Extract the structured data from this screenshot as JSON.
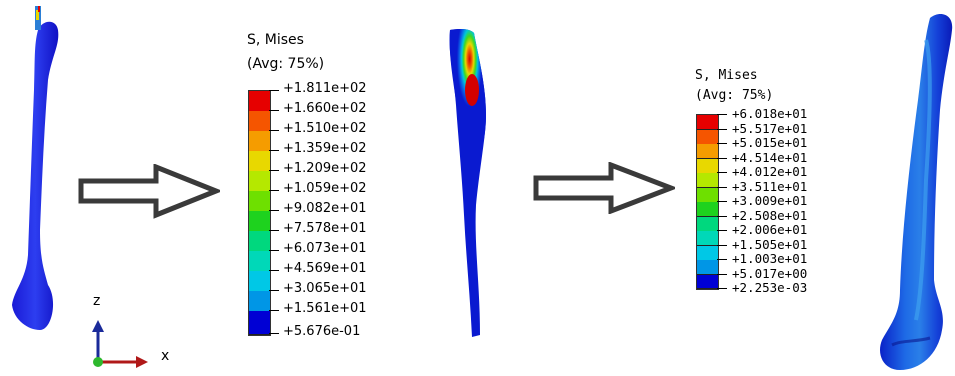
{
  "legend_left": {
    "title_line1": "S, Mises",
    "title_line2": "(Avg: 75%)",
    "values": [
      "+1.811e+02",
      "+1.660e+02",
      "+1.510e+02",
      "+1.359e+02",
      "+1.209e+02",
      "+1.059e+02",
      "+9.082e+01",
      "+7.578e+01",
      "+6.073e+01",
      "+4.569e+01",
      "+3.065e+01",
      "+1.561e+01",
      "+5.676e-01"
    ]
  },
  "legend_right": {
    "title_line1": "S, Mises",
    "title_line2": "(Avg: 75%)",
    "values": [
      "+6.018e+01",
      "+5.517e+01",
      "+5.015e+01",
      "+4.514e+01",
      "+4.012e+01",
      "+3.511e+01",
      "+3.009e+01",
      "+2.508e+01",
      "+2.006e+01",
      "+1.505e+01",
      "+1.003e+01",
      "+5.017e+00",
      "+2.253e-03"
    ]
  },
  "colors": [
    "#e60000",
    "#f55500",
    "#f59c00",
    "#e8d800",
    "#b5e800",
    "#6ee000",
    "#1ed21e",
    "#00d87e",
    "#00d8b8",
    "#00c8e6",
    "#0096e6",
    "#0058e0",
    "#0000d4"
  ],
  "triad": {
    "z_label": "z",
    "x_label": "x"
  },
  "arrows": [
    "hollow-right-arrow",
    "hollow-right-arrow"
  ],
  "icons": {
    "bone_model": "femur-fe-model",
    "triad": "axis-triad"
  }
}
